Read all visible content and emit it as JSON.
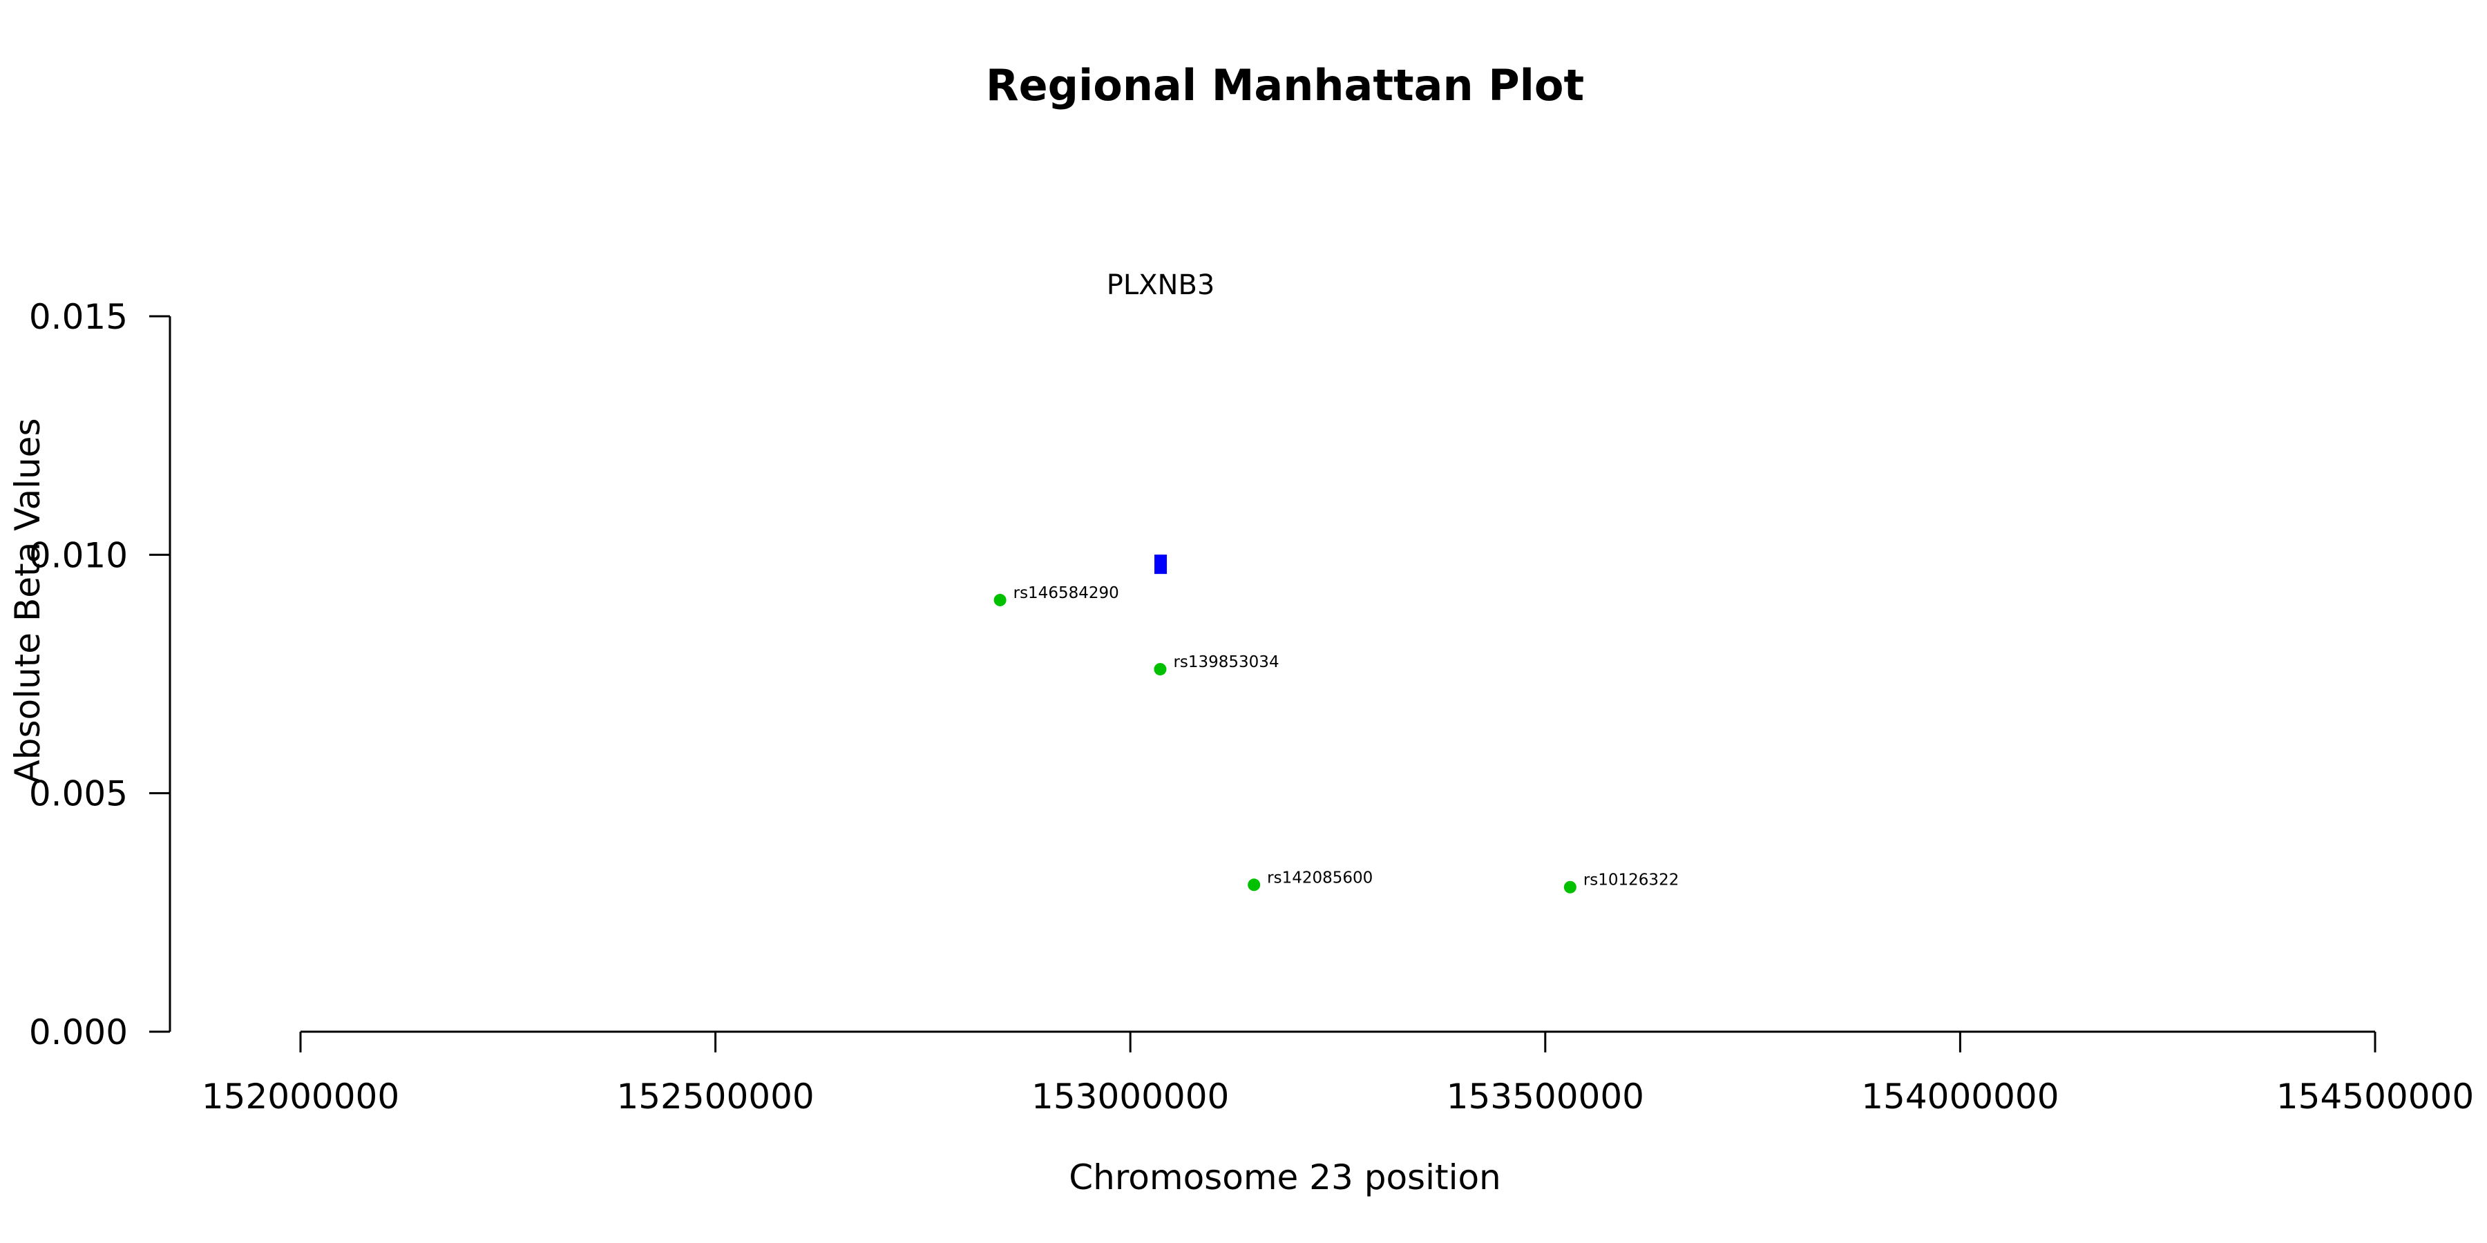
{
  "chart_data": {
    "type": "scatter",
    "title": "Regional Manhattan Plot",
    "xlabel": "Chromosome 23 position",
    "ylabel": "Absolute Beta Values",
    "xlim": [
      152000000,
      154500000
    ],
    "ylim": [
      0,
      0.015
    ],
    "x_ticks": [
      "152000000",
      "152500000",
      "153000000",
      "153500000",
      "154000000",
      "154500000"
    ],
    "x_tick_values": [
      152000000,
      152500000,
      153000000,
      153500000,
      154000000,
      154500000
    ],
    "y_ticks": [
      "0.000",
      "0.005",
      "0.010",
      "0.015"
    ],
    "y_tick_values": [
      0,
      0.005,
      0.01,
      0.015
    ],
    "grid": false,
    "point_color": "#00c000",
    "gene_color": "#0000ff",
    "genes": [
      {
        "name": "PLXNB3",
        "start": 153029000,
        "end": 153044000,
        "y": 0.0098
      }
    ],
    "points": [
      {
        "label": "rs146584290",
        "x": 152843000,
        "y": 0.00905
      },
      {
        "label": "rs139853034",
        "x": 153036000,
        "y": 0.0076
      },
      {
        "label": "rs142085600",
        "x": 153149000,
        "y": 0.00308
      },
      {
        "label": "rs10126322",
        "x": 153530000,
        "y": 0.00303
      }
    ]
  }
}
